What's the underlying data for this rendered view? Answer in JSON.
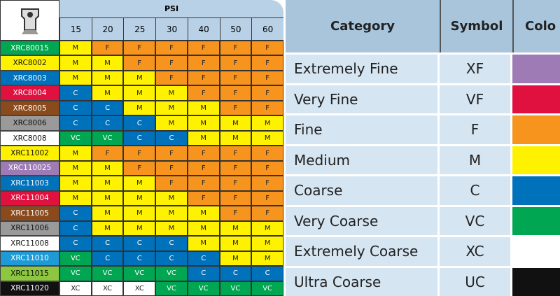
{
  "psi_table": {
    "header": "PSI",
    "pressures": [
      15,
      20,
      25,
      30,
      40,
      50,
      60
    ],
    "rows": [
      {
        "nozzle": "XRC80015",
        "color": "#00a651",
        "values": [
          "M",
          "F",
          "F",
          "F",
          "F",
          "F",
          "F"
        ]
      },
      {
        "nozzle": "XRC8002",
        "color": "#fff200",
        "values": [
          "M",
          "M",
          "F",
          "F",
          "F",
          "F",
          "F"
        ]
      },
      {
        "nozzle": "XRC8003",
        "color": "#0072bc",
        "values": [
          "M",
          "M",
          "M",
          "F",
          "F",
          "F",
          "F"
        ]
      },
      {
        "nozzle": "XRC8004",
        "color": "#e0103f",
        "values": [
          "C",
          "M",
          "M",
          "M",
          "F",
          "F",
          "F"
        ]
      },
      {
        "nozzle": "XRC8005",
        "color": "#8b4a1c",
        "values": [
          "C",
          "C",
          "M",
          "M",
          "M",
          "F",
          "F"
        ]
      },
      {
        "nozzle": "XRC8006",
        "color": "#9a9a9a",
        "values": [
          "C",
          "C",
          "C",
          "M",
          "M",
          "M",
          "M"
        ]
      },
      {
        "nozzle": "XRC8008",
        "color": "#ffffff",
        "values": [
          "VC",
          "VC",
          "C",
          "C",
          "M",
          "M",
          "M"
        ]
      },
      {
        "nozzle": "XRC11002",
        "color": "#fff200",
        "values": [
          "M",
          "F",
          "F",
          "F",
          "F",
          "F",
          "F"
        ]
      },
      {
        "nozzle": "XRC110025",
        "color": "#9e7bb5",
        "values": [
          "M",
          "M",
          "F",
          "F",
          "F",
          "F",
          "F"
        ]
      },
      {
        "nozzle": "XRC11003",
        "color": "#0072bc",
        "values": [
          "M",
          "M",
          "M",
          "F",
          "F",
          "F",
          "F"
        ]
      },
      {
        "nozzle": "XRC11004",
        "color": "#e0103f",
        "values": [
          "M",
          "M",
          "M",
          "M",
          "F",
          "F",
          "F"
        ]
      },
      {
        "nozzle": "XRC11005",
        "color": "#8b4a1c",
        "values": [
          "C",
          "M",
          "M",
          "M",
          "M",
          "F",
          "F"
        ]
      },
      {
        "nozzle": "XRC11006",
        "color": "#9a9a9a",
        "values": [
          "C",
          "M",
          "M",
          "M",
          "M",
          "M",
          "M"
        ]
      },
      {
        "nozzle": "XRC11008",
        "color": "#ffffff",
        "values": [
          "C",
          "C",
          "C",
          "C",
          "M",
          "M",
          "M"
        ]
      },
      {
        "nozzle": "XRC11010",
        "color": "#1e9ad6",
        "values": [
          "VC",
          "C",
          "C",
          "C",
          "C",
          "M",
          "M"
        ]
      },
      {
        "nozzle": "XRC11015",
        "color": "#8dc63f",
        "values": [
          "VC",
          "VC",
          "VC",
          "VC",
          "C",
          "C",
          "C"
        ]
      },
      {
        "nozzle": "XRC11020",
        "color": "#111111",
        "values": [
          "XC",
          "XC",
          "XC",
          "VC",
          "VC",
          "VC",
          "VC"
        ]
      }
    ]
  },
  "legend": {
    "headers": [
      "Category",
      "Symbol",
      "Colo"
    ],
    "rows": [
      {
        "category": "Extremely Fine",
        "symbol": "XF",
        "color": "#9e7bb5"
      },
      {
        "category": "Very Fine",
        "symbol": "VF",
        "color": "#e0103f"
      },
      {
        "category": "Fine",
        "symbol": "F",
        "color": "#f7941d"
      },
      {
        "category": "Medium",
        "symbol": "M",
        "color": "#fff200"
      },
      {
        "category": "Coarse",
        "symbol": "C",
        "color": "#0072bc"
      },
      {
        "category": "Very Coarse",
        "symbol": "VC",
        "color": "#00a651"
      },
      {
        "category": "Extremely Coarse",
        "symbol": "XC",
        "color": "#ffffff"
      },
      {
        "category": "Ultra Coarse",
        "symbol": "UC",
        "color": "#111111"
      }
    ]
  }
}
